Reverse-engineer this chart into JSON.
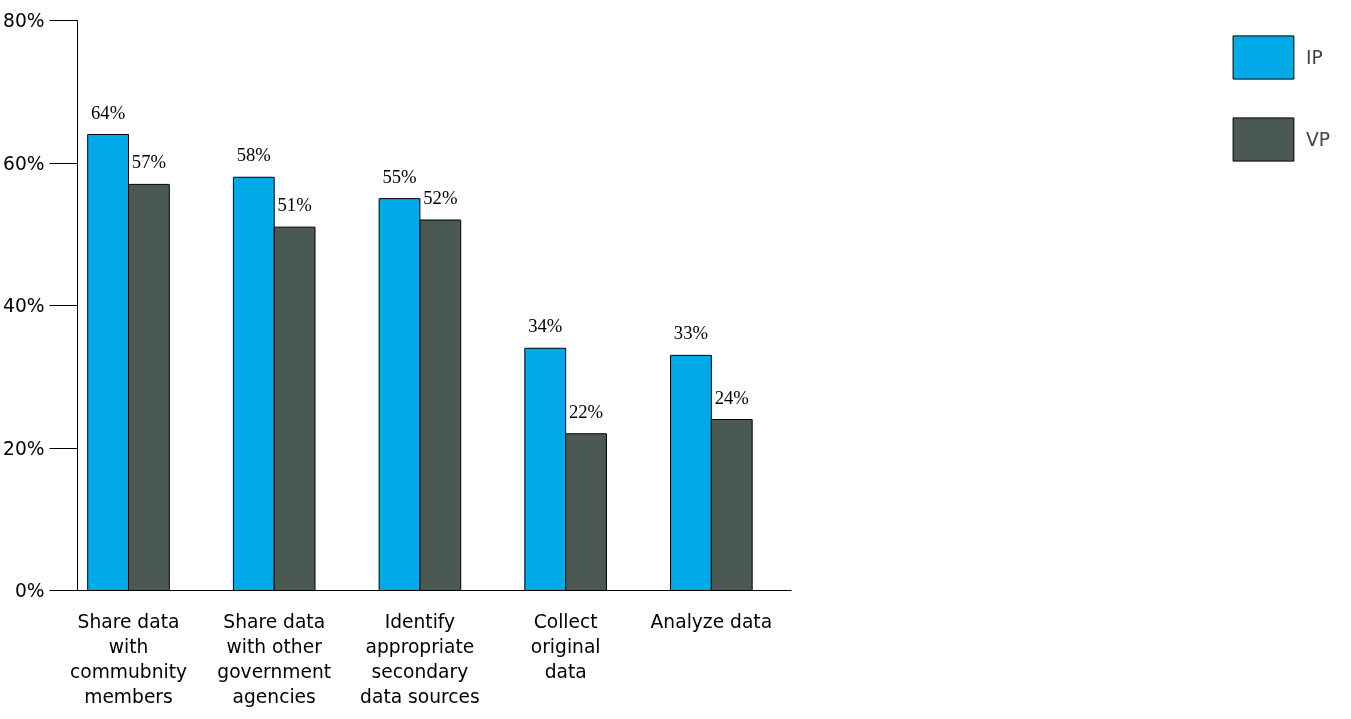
{
  "chart_data": {
    "type": "bar",
    "categories": [
      "Share data with commubnity members",
      "Share data with other government agencies",
      "Identify appropriate secondary data sources",
      "Collect original data",
      "Analyze data"
    ],
    "series": [
      {
        "name": "IP",
        "color": "#00a9e8",
        "values": [
          64,
          58,
          55,
          34,
          33
        ],
        "value_labels": [
          "64%",
          "58%",
          "55%",
          "34%",
          "33%"
        ]
      },
      {
        "name": "VP",
        "color": "#4a5a52",
        "values": [
          57,
          51,
          52,
          22,
          24
        ],
        "value_labels": [
          "57%",
          "51%",
          "52%",
          "22%",
          "24%"
        ]
      }
    ],
    "ylim": [
      0,
      80
    ],
    "yticks": [
      {
        "value": 0,
        "label": "0%"
      },
      {
        "value": 20,
        "label": "20%"
      },
      {
        "value": 40,
        "label": "40%"
      },
      {
        "value": 60,
        "label": "60%"
      },
      {
        "value": 80,
        "label": "80%"
      }
    ],
    "grid": false,
    "legend": "top right"
  }
}
